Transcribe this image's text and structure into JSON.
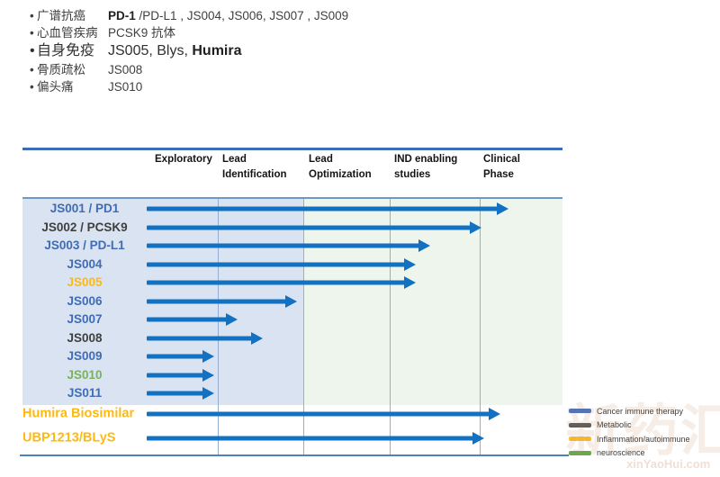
{
  "intro": {
    "rows": [
      {
        "bullet": "•",
        "category": "广谱抗癌",
        "bold_lead": "PD-1",
        "rest": " /PD-L1 , JS004, JS006, JS007 , JS009"
      },
      {
        "bullet": "•",
        "category": "心血管疾病",
        "rest": "PCSK9 抗体"
      },
      {
        "bullet": "•",
        "category": "自身免疫",
        "rest": "JS005, Blys, ",
        "bold_tail": "Humira"
      },
      {
        "bullet": "•",
        "category": "骨质疏松",
        "rest": "JS008"
      },
      {
        "bullet": "•",
        "category": "偏头痛",
        "rest": "JS010"
      }
    ]
  },
  "chart_data": {
    "type": "gantt-pipeline",
    "stages": [
      "Exploratory",
      "Lead Identification",
      "Lead Optimization",
      "IND enabling studies",
      "Clinical Phase"
    ],
    "stage_scale": "progress is measured in stages completed, 0 = start of Exploratory, 5 = end of Clinical Phase",
    "rows": [
      {
        "label": "JS001 / PD1",
        "label_color": "blue",
        "progress": 4.35
      },
      {
        "label": "JS002 / PCSK9",
        "label_color": "dark",
        "progress": 4.02
      },
      {
        "label": "JS003 / PD-L1",
        "label_color": "blue",
        "progress": 3.45
      },
      {
        "label": "JS004",
        "label_color": "blue",
        "progress": 3.29
      },
      {
        "label": "JS005",
        "label_color": "yellow",
        "progress": 3.29
      },
      {
        "label": "JS006",
        "label_color": "blue",
        "progress": 1.93
      },
      {
        "label": "JS007",
        "label_color": "blue",
        "progress": 1.23
      },
      {
        "label": "JS008",
        "label_color": "dark",
        "progress": 1.53
      },
      {
        "label": "JS009",
        "label_color": "blue",
        "progress": 0.95
      },
      {
        "label": "JS010",
        "label_color": "green",
        "progress": 0.95
      },
      {
        "label": "JS011",
        "label_color": "blue",
        "progress": 0.95
      },
      {
        "label": "Humira Biosimilar",
        "label_color": "yellow",
        "progress": 4.25
      },
      {
        "label": "UBP1213/BLyS",
        "label_color": "yellow",
        "progress": 4.05
      }
    ]
  },
  "colors": {
    "arrow": "#1371c1",
    "panel_blue": "#dae3f1",
    "panel_green": "#eef5ec",
    "labels": {
      "blue": "#3f6cb5",
      "dark": "#3f3f3f",
      "yellow": "#fdb913",
      "green": "#77b35c"
    }
  },
  "legend": {
    "items": [
      {
        "label": "Cancer immune therapy",
        "color": "#4472c4"
      },
      {
        "label": "Metabolic",
        "color": "#595959"
      },
      {
        "label": "Inflammation/autoimmune",
        "color": "#fbbf2d"
      },
      {
        "label": "neuroscience",
        "color": "#6aa84f"
      }
    ]
  },
  "watermark": {
    "line1": "新药汇",
    "line2": "xinYaoHui.com"
  }
}
